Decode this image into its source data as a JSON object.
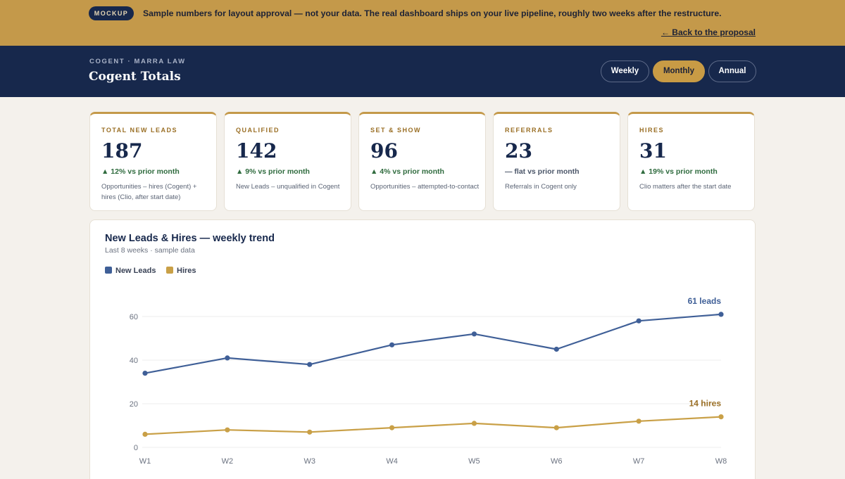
{
  "banner": {
    "badge": "MOCKUP",
    "message": "Sample numbers for layout approval — not your data. The real dashboard ships on your live pipeline, roughly two weeks after the restructure.",
    "back_link": "← Back to the proposal"
  },
  "header": {
    "eyebrow": "COGENT · MARRA LAW",
    "title": "Cogent Totals",
    "periods": [
      {
        "label": "Weekly",
        "active": false
      },
      {
        "label": "Monthly",
        "active": true
      },
      {
        "label": "Annual",
        "active": false
      }
    ]
  },
  "kpis": [
    {
      "label": "TOTAL NEW LEADS",
      "value": "187",
      "delta": "▲ 12% vs prior month",
      "note": "Opportunities – hires (Cogent) + hires (Clio, after start date)"
    },
    {
      "label": "QUALIFIED",
      "value": "142",
      "delta": "▲ 9% vs prior month",
      "note": "New Leads – unqualified in Cogent"
    },
    {
      "label": "SET & SHOW",
      "value": "96",
      "delta": "▲ 4% vs prior month",
      "note": "Opportunities – attempted-to-contact"
    },
    {
      "label": "REFERRALS",
      "value": "23",
      "delta": "— flat vs prior month",
      "note": "Referrals in Cogent only"
    },
    {
      "label": "HIRES",
      "value": "31",
      "delta": "▲ 19% vs prior month",
      "note": "Clio matters after the start date"
    }
  ],
  "colors": {
    "banner": "#c4994a",
    "header": "#17284c",
    "accent_gold": "#c89b45",
    "leads_line": "#3f5f97",
    "hires_line": "#c9a047",
    "positive": "#2f6b3e"
  },
  "chart_data": {
    "type": "line",
    "title": "New Leads & Hires — weekly trend",
    "subtitle": "Last 8 weeks · sample data",
    "categories": [
      "W1",
      "W2",
      "W3",
      "W4",
      "W5",
      "W6",
      "W7",
      "W8"
    ],
    "series": [
      {
        "name": "New Leads",
        "color": "#3f5f97",
        "values": [
          34,
          41,
          38,
          47,
          52,
          45,
          58,
          61
        ],
        "end_label": "61 leads"
      },
      {
        "name": "Hires",
        "color": "#c9a047",
        "values": [
          6,
          8,
          7,
          9,
          11,
          9,
          12,
          14
        ],
        "end_label": "14 hires"
      }
    ],
    "y_ticks": [
      0,
      20,
      40,
      60
    ],
    "ylim": [
      0,
      60
    ],
    "grid": true,
    "legend": "top-left"
  }
}
